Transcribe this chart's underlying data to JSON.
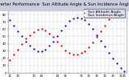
{
  "title": "Solar PV/Inverter Performance  Sun Altitude Angle & Sun Incidence Angle on PV Panels",
  "bg_color": "#ffffff",
  "plot_bg": "#ffffff",
  "series": [
    {
      "label": "Sun Altitude Angle",
      "color": "#0000cc",
      "points": [
        [
          0,
          72
        ],
        [
          1,
          65
        ],
        [
          2,
          57
        ],
        [
          3,
          50
        ],
        [
          4,
          43
        ],
        [
          5,
          37
        ],
        [
          6,
          33
        ],
        [
          7,
          30
        ],
        [
          8,
          30
        ],
        [
          9,
          32
        ],
        [
          10,
          37
        ],
        [
          11,
          43
        ],
        [
          12,
          51
        ],
        [
          13,
          58
        ],
        [
          14,
          65
        ],
        [
          15,
          71
        ],
        [
          16,
          75
        ],
        [
          17,
          76
        ],
        [
          18,
          75
        ],
        [
          19,
          72
        ],
        [
          20,
          67
        ],
        [
          21,
          60
        ],
        [
          22,
          52
        ],
        [
          23,
          44
        ],
        [
          24,
          36
        ],
        [
          25,
          28
        ],
        [
          26,
          20
        ],
        [
          27,
          13
        ],
        [
          28,
          7
        ],
        [
          29,
          2
        ]
      ]
    },
    {
      "label": "Sun Incidence Angle",
      "color": "#cc0000",
      "points": [
        [
          0,
          18
        ],
        [
          1,
          25
        ],
        [
          2,
          32
        ],
        [
          3,
          40
        ],
        [
          4,
          47
        ],
        [
          5,
          52
        ],
        [
          6,
          56
        ],
        [
          7,
          59
        ],
        [
          8,
          60
        ],
        [
          9,
          58
        ],
        [
          10,
          54
        ],
        [
          11,
          49
        ],
        [
          12,
          43
        ],
        [
          13,
          37
        ],
        [
          14,
          31
        ],
        [
          15,
          27
        ],
        [
          16,
          25
        ],
        [
          17,
          25
        ],
        [
          18,
          27
        ],
        [
          19,
          30
        ],
        [
          20,
          35
        ],
        [
          21,
          42
        ],
        [
          22,
          49
        ],
        [
          23,
          57
        ],
        [
          24,
          65
        ],
        [
          25,
          73
        ],
        [
          26,
          80
        ],
        [
          27,
          85
        ],
        [
          28,
          88
        ],
        [
          29,
          90
        ]
      ]
    }
  ],
  "xlim": [
    -0.5,
    29.5
  ],
  "ylim": [
    0,
    90
  ],
  "xtick_labels": [
    "12",
    "",
    "13",
    "",
    "",
    "",
    "13",
    "",
    "14",
    "",
    "",
    "",
    "14",
    "",
    "15",
    "",
    "",
    "",
    "15",
    "",
    "15",
    "",
    "15",
    "",
    "15",
    "",
    "15",
    "",
    "15",
    "15"
  ],
  "ytick_vals": [
    0,
    10,
    20,
    30,
    40,
    50,
    60,
    70,
    80,
    90
  ],
  "grid_color": "#aaaacc",
  "title_fontsize": 3.8,
  "legend_fontsize": 3.2,
  "tick_fontsize": 2.8,
  "marker_size": 1.2,
  "legend_colors": [
    "#0000cc",
    "#cc0000"
  ],
  "legend_labels": [
    "Sun Altitude Angle",
    "Sun Incidence Angle"
  ],
  "legend_bg": "#ddddee",
  "title_bg": "#ccccdd"
}
